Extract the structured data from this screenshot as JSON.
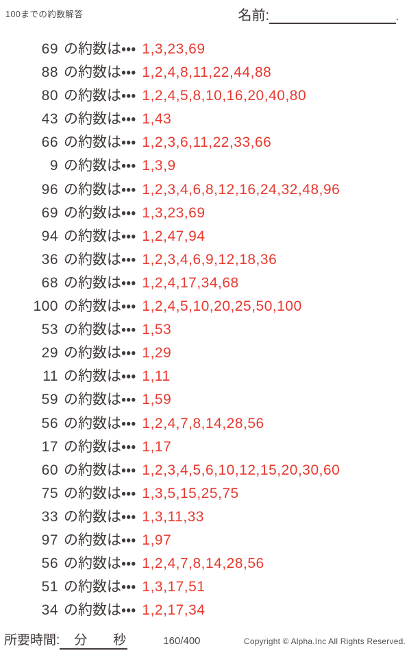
{
  "page": {
    "title": "100までの約数解答",
    "name_label": "名前:",
    "name_suffix": "."
  },
  "list": {
    "label_suffix": "の約数は・・・",
    "rows": [
      {
        "number": "69",
        "divisors": "1,3,23,69"
      },
      {
        "number": "88",
        "divisors": "1,2,4,8,11,22,44,88"
      },
      {
        "number": "80",
        "divisors": "1,2,4,5,8,10,16,20,40,80"
      },
      {
        "number": "43",
        "divisors": "1,43"
      },
      {
        "number": "66",
        "divisors": "1,2,3,6,11,22,33,66"
      },
      {
        "number": "9",
        "divisors": "1,3,9"
      },
      {
        "number": "96",
        "divisors": "1,2,3,4,6,8,12,16,24,32,48,96"
      },
      {
        "number": "69",
        "divisors": "1,3,23,69"
      },
      {
        "number": "94",
        "divisors": "1,2,47,94"
      },
      {
        "number": "36",
        "divisors": "1,2,3,4,6,9,12,18,36"
      },
      {
        "number": "68",
        "divisors": "1,2,4,17,34,68"
      },
      {
        "number": "100",
        "divisors": "1,2,4,5,10,20,25,50,100"
      },
      {
        "number": "53",
        "divisors": "1,53"
      },
      {
        "number": "29",
        "divisors": "1,29"
      },
      {
        "number": "11",
        "divisors": "1,11"
      },
      {
        "number": "59",
        "divisors": "1,59"
      },
      {
        "number": "56",
        "divisors": "1,2,4,7,8,14,28,56"
      },
      {
        "number": "17",
        "divisors": "1,17"
      },
      {
        "number": "60",
        "divisors": "1,2,3,4,5,6,10,12,15,20,30,60"
      },
      {
        "number": "75",
        "divisors": "1,3,5,15,25,75"
      },
      {
        "number": "33",
        "divisors": "1,3,11,33"
      },
      {
        "number": "97",
        "divisors": "1,97"
      },
      {
        "number": "56",
        "divisors": "1,2,4,7,8,14,28,56"
      },
      {
        "number": "51",
        "divisors": "1,3,17,51"
      },
      {
        "number": "34",
        "divisors": "1,2,17,34"
      }
    ]
  },
  "footer": {
    "time_label": "所要時間:",
    "time_blank": "　分　　秒",
    "page_indicator": "160/400",
    "copyright": "Copyright ©  Alpha.Inc All Rights Reserved."
  },
  "colors": {
    "answer_red": "#e8392f",
    "text_dark": "#403a38"
  }
}
